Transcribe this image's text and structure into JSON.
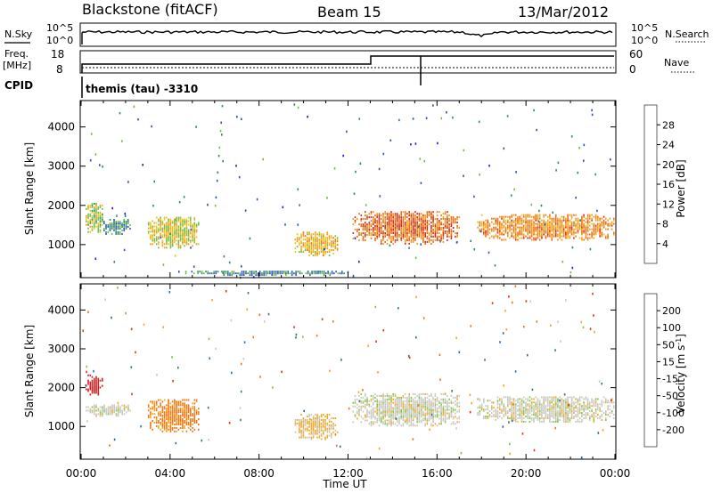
{
  "header": {
    "station": "Blackstone (fitACF)",
    "beam": "Beam 15",
    "date": "13/Mar/2012"
  },
  "top_panels": {
    "nsky_label": "N.Sky",
    "nsearch_label": "N.Search",
    "freq_label_1": "Freq.",
    "freq_label_2": "[MHz]",
    "nave_label": "Nave",
    "cpid_label": "CPID",
    "left_ticks_top": [
      "10^5",
      "10^0"
    ],
    "right_ticks_top": [
      "10^5",
      "10^0"
    ],
    "freq_ticks": [
      "18",
      "8"
    ],
    "nave_ticks": [
      "60",
      "0"
    ],
    "program": "themis (tau) -3310"
  },
  "chart_data": [
    {
      "type": "heatmap",
      "title": "",
      "ylabel": "Slant Range [km]",
      "xlabel": "Time UT",
      "xlim": [
        0,
        24
      ],
      "ylim": [
        180,
        4650
      ],
      "x_ticks": [
        "00:00",
        "04:00",
        "08:00",
        "12:00",
        "16:00",
        "20:00",
        "00:00"
      ],
      "y_ticks": [
        1000,
        2000,
        3000,
        4000
      ],
      "colorbar": {
        "label": "Power [dB]",
        "ticks": [
          4,
          8,
          12,
          16,
          20,
          24,
          28
        ],
        "range": [
          0,
          32
        ],
        "colors": [
          "#1b1bea",
          "#2a55b8",
          "#2f8a64",
          "#6bbd45",
          "#f0c21a",
          "#f39a14",
          "#ee6b12",
          "#e0251d"
        ]
      },
      "echo_regions": [
        {
          "t": [
            0.2,
            1.0
          ],
          "r": [
            1300,
            2050
          ],
          "power": 16
        },
        {
          "t": [
            1.0,
            2.2
          ],
          "r": [
            1250,
            1650
          ],
          "power": 11
        },
        {
          "t": [
            3.0,
            5.3
          ],
          "r": [
            900,
            1700
          ],
          "power": 17
        },
        {
          "t": [
            9.6,
            11.5
          ],
          "r": [
            700,
            1300
          ],
          "power": 20
        },
        {
          "t": [
            12.2,
            17.0
          ],
          "r": [
            1000,
            1850
          ],
          "power": 26
        },
        {
          "t": [
            17.8,
            24.0
          ],
          "r": [
            1100,
            1750
          ],
          "power": 24
        },
        {
          "t": [
            4.5,
            11.8
          ],
          "r": [
            200,
            320
          ],
          "power": 9
        }
      ]
    },
    {
      "type": "heatmap",
      "title": "",
      "ylabel": "Slant Range [km]",
      "xlabel": "Time UT",
      "xlim": [
        0,
        24
      ],
      "ylim": [
        180,
        4650
      ],
      "x_ticks": [
        "00:00",
        "04:00",
        "08:00",
        "12:00",
        "16:00",
        "20:00",
        "00:00"
      ],
      "y_ticks": [
        1000,
        2000,
        3000,
        4000
      ],
      "colorbar": {
        "label": "Velocity [m s^-1]",
        "ticks": [
          "200",
          "100",
          "50",
          "15",
          "-15",
          "-50",
          "-100",
          "-200"
        ],
        "colors": [
          "#1f33c8",
          "#2a6aa8",
          "#2f7f53",
          "#7cc63a",
          "#c8c8c0",
          "#f2a81a",
          "#ef7412",
          "#e63019",
          "#d4181c"
        ]
      },
      "echo_regions": [
        {
          "t": [
            0.2,
            1.0
          ],
          "r": [
            1800,
            2300
          ],
          "velocity": -250
        },
        {
          "t": [
            0.2,
            2.2
          ],
          "r": [
            1250,
            1550
          ],
          "velocity": 0
        },
        {
          "t": [
            3.0,
            5.3
          ],
          "r": [
            850,
            1700
          ],
          "velocity": -60
        },
        {
          "t": [
            9.6,
            11.5
          ],
          "r": [
            650,
            1300
          ],
          "velocity": -20
        },
        {
          "t": [
            12.2,
            17.0
          ],
          "r": [
            1000,
            1850
          ],
          "velocity": 0
        },
        {
          "t": [
            17.8,
            24.0
          ],
          "r": [
            1100,
            1750
          ],
          "velocity": 0
        }
      ]
    }
  ],
  "colors": {
    "axis": "#000000",
    "background": "#ffffff"
  }
}
